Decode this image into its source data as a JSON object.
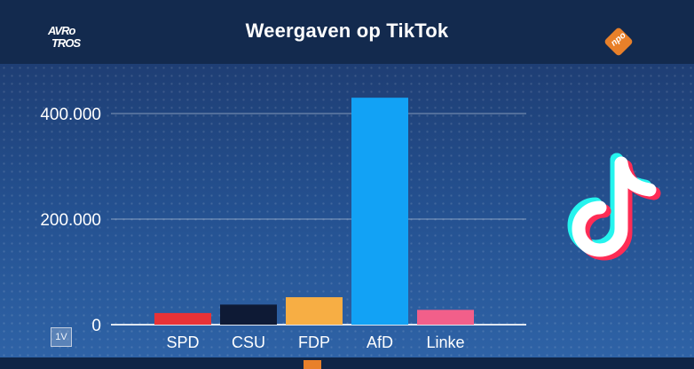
{
  "header": {
    "title": "Weergaven op TikTok",
    "logo_left_line1": "AVRo",
    "logo_left_line2": "TROS",
    "logo_right_text": "npo",
    "logo_right_color": "#e8802a",
    "background_color": "#132a4e"
  },
  "badge": {
    "text": "1V"
  },
  "tiktok_logo": {
    "icon": "tiktok-note-icon",
    "colors": [
      "#25f4ee",
      "#fe2c55",
      "#ffffff"
    ]
  },
  "chart_data": {
    "type": "bar",
    "title": "Weergaven op TikTok",
    "categories": [
      "SPD",
      "CSU",
      "FDP",
      "AfD",
      "Linke"
    ],
    "values": [
      22000,
      38000,
      52000,
      430000,
      28000
    ],
    "colors": [
      "#e83236",
      "#0e1a35",
      "#f7ae44",
      "#12a2f5",
      "#f25f8a"
    ],
    "yticks": [
      0,
      200000,
      400000
    ],
    "ytick_labels": [
      "0",
      "200.000",
      "400.000"
    ],
    "ylim": [
      0,
      450000
    ],
    "grid": true,
    "xlabel": "",
    "ylabel": ""
  }
}
